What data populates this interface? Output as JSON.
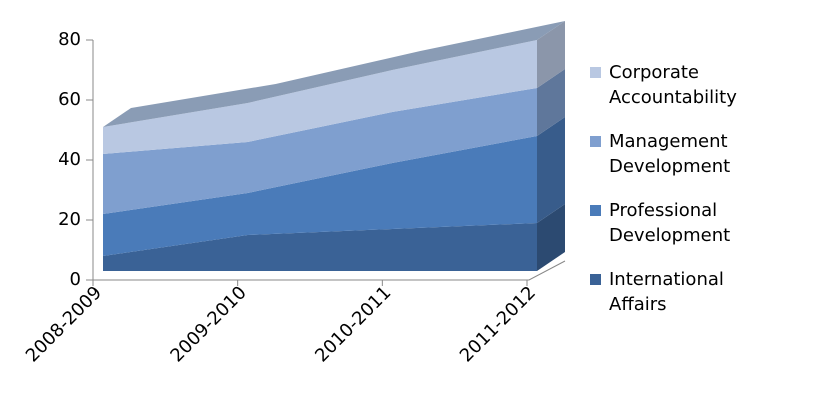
{
  "chart_data": {
    "type": "area",
    "stacked": true,
    "categories": [
      "2008-2009",
      "2009-2010",
      "2010-2011",
      "2011-2012"
    ],
    "series": [
      {
        "name": "International Affairs",
        "color": "#3a6296",
        "values": [
          5,
          12,
          14,
          16
        ]
      },
      {
        "name": "Professional Development",
        "color": "#4a7bb9",
        "values": [
          14,
          14,
          22,
          29
        ]
      },
      {
        "name": "Management Development",
        "color": "#7f9fcf",
        "values": [
          20,
          17,
          17,
          16
        ]
      },
      {
        "name": "Corporate Accountability",
        "color": "#b9c8e2",
        "values": [
          9,
          13,
          14,
          16
        ]
      }
    ],
    "ylim": [
      0,
      80
    ],
    "yticks": [
      0,
      20,
      40,
      60,
      80
    ],
    "legend": "right"
  }
}
